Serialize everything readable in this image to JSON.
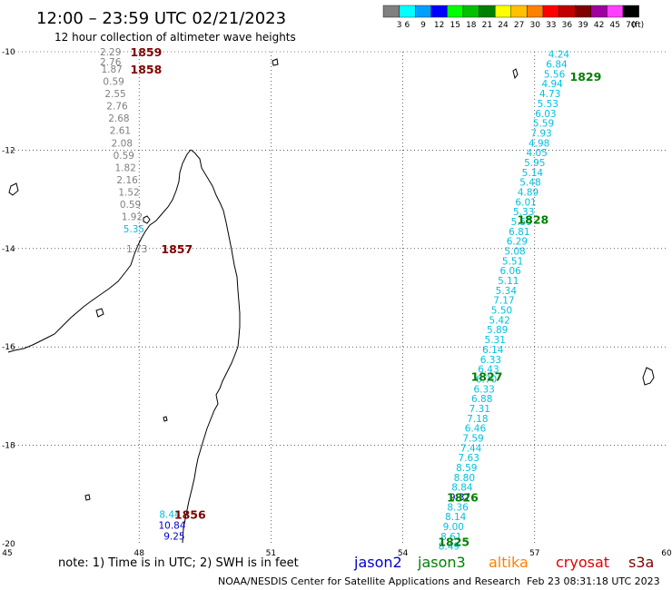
{
  "header": {
    "title": "12:00 – 23:59 UTC 02/21/2023",
    "subtitle": "12 hour collection of altimeter wave heights"
  },
  "legend": {
    "unit": "(ft)",
    "bins": [
      {
        "label": "3",
        "color": "#808080"
      },
      {
        "label": "6",
        "color": "#00ffff"
      },
      {
        "label": "9",
        "color": "#00a0ff"
      },
      {
        "label": "12",
        "color": "#0000ff"
      },
      {
        "label": "15",
        "color": "#00ff00"
      },
      {
        "label": "18",
        "color": "#00c000"
      },
      {
        "label": "21",
        "color": "#008000"
      },
      {
        "label": "24",
        "color": "#ffff00"
      },
      {
        "label": "27",
        "color": "#ffc000"
      },
      {
        "label": "30",
        "color": "#ff8000"
      },
      {
        "label": "33",
        "color": "#ff0000"
      },
      {
        "label": "36",
        "color": "#c00000"
      },
      {
        "label": "39",
        "color": "#800000"
      },
      {
        "label": "42",
        "color": "#a000a0"
      },
      {
        "label": "45",
        "color": "#ff40ff"
      },
      {
        "label": "70",
        "color": "#000000"
      }
    ]
  },
  "axes": {
    "lon_labels": [
      "45",
      "48",
      "51",
      "54",
      "57",
      "60"
    ],
    "lat_labels": [
      "-10",
      "-12",
      "-14",
      "-16",
      "-18",
      "-20"
    ]
  },
  "footer": {
    "note": "note: 1) Time is in UTC; 2) SWH is in feet",
    "satellites": [
      {
        "name": "jason2",
        "color": "#0000cc"
      },
      {
        "name": "jason3",
        "color": "#008000"
      },
      {
        "name": "altika",
        "color": "#ff8000"
      },
      {
        "name": "cryosat",
        "color": "#e00000"
      },
      {
        "name": "s3a",
        "color": "#800000"
      }
    ],
    "credit": "NOAA/NESDIS Center for Satellite Applications and Research",
    "timestamp": "Feb 23 08:31:18 UTC 2023"
  },
  "palette": {
    "gray": "#808080",
    "cyan": "#00c0e0",
    "blue": "#0000cc",
    "jason3_green": "#008000",
    "s3a_maroon": "#800000"
  },
  "tracks": [
    {
      "satellite": "s3a",
      "time_labels": [
        {
          "text": "1859",
          "lon": 47.8,
          "lat": -10.0
        },
        {
          "text": "1858",
          "lon": 47.8,
          "lat": -10.35
        },
        {
          "text": "1857",
          "lon": 48.5,
          "lat": -14.0
        },
        {
          "text": "1856",
          "lon": 48.8,
          "lat": -19.4
        }
      ],
      "swh": [
        {
          "v": "2.29",
          "lon": 47.35,
          "lat": -10.0,
          "c": "gray"
        },
        {
          "v": "2.76",
          "lon": 47.35,
          "lat": -10.2,
          "c": "gray"
        },
        {
          "v": "1.87",
          "lon": 47.38,
          "lat": -10.35,
          "c": "gray"
        },
        {
          "v": "0.59",
          "lon": 47.42,
          "lat": -10.6,
          "c": "gray"
        },
        {
          "v": "2.55",
          "lon": 47.46,
          "lat": -10.85,
          "c": "gray"
        },
        {
          "v": "2.76",
          "lon": 47.5,
          "lat": -11.1,
          "c": "gray"
        },
        {
          "v": "2.68",
          "lon": 47.54,
          "lat": -11.35,
          "c": "gray"
        },
        {
          "v": "2.61",
          "lon": 47.57,
          "lat": -11.6,
          "c": "gray"
        },
        {
          "v": "2.08",
          "lon": 47.61,
          "lat": -11.85,
          "c": "gray"
        },
        {
          "v": "0.59",
          "lon": 47.65,
          "lat": -12.1,
          "c": "gray"
        },
        {
          "v": "1.82",
          "lon": 47.69,
          "lat": -12.35,
          "c": "gray"
        },
        {
          "v": "2.16",
          "lon": 47.73,
          "lat": -12.6,
          "c": "gray"
        },
        {
          "v": "1.52",
          "lon": 47.77,
          "lat": -12.85,
          "c": "gray"
        },
        {
          "v": "0.59",
          "lon": 47.8,
          "lat": -13.1,
          "c": "gray"
        },
        {
          "v": "1.92",
          "lon": 47.84,
          "lat": -13.35,
          "c": "gray"
        },
        {
          "v": "5.35",
          "lon": 47.88,
          "lat": -13.6,
          "c": "cyan"
        },
        {
          "v": "1.73",
          "lon": 47.95,
          "lat": -14.0,
          "c": "gray"
        },
        {
          "v": "8.44",
          "lon": 48.7,
          "lat": -19.4,
          "c": "cyan"
        },
        {
          "v": "10.84",
          "lon": 48.75,
          "lat": -19.62,
          "c": "blue"
        },
        {
          "v": "9.25",
          "lon": 48.8,
          "lat": -19.84,
          "c": "blue"
        }
      ]
    },
    {
      "satellite": "jason3",
      "time_labels": [
        {
          "text": "1829",
          "lon": 57.8,
          "lat": -10.5
        },
        {
          "text": "1828",
          "lon": 56.6,
          "lat": -13.4
        },
        {
          "text": "1827",
          "lon": 55.55,
          "lat": -16.6
        },
        {
          "text": "1826",
          "lon": 55.0,
          "lat": -19.05
        },
        {
          "text": "1825",
          "lon": 54.8,
          "lat": -19.95
        }
      ],
      "swh": [
        {
          "v": "4.24",
          "lon": 57.55,
          "lat": -10.05,
          "c": "cyan"
        },
        {
          "v": "6.84",
          "lon": 57.5,
          "lat": -10.25,
          "c": "cyan"
        },
        {
          "v": "5.56",
          "lon": 57.45,
          "lat": -10.45,
          "c": "cyan"
        },
        {
          "v": "4.94",
          "lon": 57.4,
          "lat": -10.65,
          "c": "cyan"
        },
        {
          "v": "4.73",
          "lon": 57.35,
          "lat": -10.85,
          "c": "cyan"
        },
        {
          "v": "5.53",
          "lon": 57.3,
          "lat": -11.05,
          "c": "cyan"
        },
        {
          "v": "6.03",
          "lon": 57.25,
          "lat": -11.25,
          "c": "cyan"
        },
        {
          "v": "5.59",
          "lon": 57.2,
          "lat": -11.45,
          "c": "cyan"
        },
        {
          "v": "7.93",
          "lon": 57.15,
          "lat": -11.65,
          "c": "cyan"
        },
        {
          "v": "4.98",
          "lon": 57.1,
          "lat": -11.85,
          "c": "cyan"
        },
        {
          "v": "4.05",
          "lon": 57.05,
          "lat": -12.05,
          "c": "cyan"
        },
        {
          "v": "5.95",
          "lon": 57.0,
          "lat": -12.25,
          "c": "cyan"
        },
        {
          "v": "5.14",
          "lon": 56.95,
          "lat": -12.45,
          "c": "cyan"
        },
        {
          "v": "5.48",
          "lon": 56.9,
          "lat": -12.65,
          "c": "cyan"
        },
        {
          "v": "4.89",
          "lon": 56.85,
          "lat": -12.85,
          "c": "cyan"
        },
        {
          "v": "6.01",
          "lon": 56.8,
          "lat": -13.05,
          "c": "cyan"
        },
        {
          "v": "5.33",
          "lon": 56.75,
          "lat": -13.25,
          "c": "cyan"
        },
        {
          "v": "5.59",
          "lon": 56.7,
          "lat": -13.45,
          "c": "cyan"
        },
        {
          "v": "6.81",
          "lon": 56.65,
          "lat": -13.65,
          "c": "cyan"
        },
        {
          "v": "6.29",
          "lon": 56.6,
          "lat": -13.85,
          "c": "cyan"
        },
        {
          "v": "5.08",
          "lon": 56.55,
          "lat": -14.05,
          "c": "cyan"
        },
        {
          "v": "5.51",
          "lon": 56.5,
          "lat": -14.25,
          "c": "cyan"
        },
        {
          "v": "6.06",
          "lon": 56.45,
          "lat": -14.45,
          "c": "cyan"
        },
        {
          "v": "5.11",
          "lon": 56.4,
          "lat": -14.65,
          "c": "cyan"
        },
        {
          "v": "5.34",
          "lon": 56.35,
          "lat": -14.85,
          "c": "cyan"
        },
        {
          "v": "7.17",
          "lon": 56.3,
          "lat": -15.05,
          "c": "cyan"
        },
        {
          "v": "5.50",
          "lon": 56.25,
          "lat": -15.25,
          "c": "cyan"
        },
        {
          "v": "5.42",
          "lon": 56.2,
          "lat": -15.45,
          "c": "cyan"
        },
        {
          "v": "5.89",
          "lon": 56.15,
          "lat": -15.65,
          "c": "cyan"
        },
        {
          "v": "5.31",
          "lon": 56.1,
          "lat": -15.85,
          "c": "cyan"
        },
        {
          "v": "6.14",
          "lon": 56.05,
          "lat": -16.05,
          "c": "cyan"
        },
        {
          "v": "6.33",
          "lon": 56.0,
          "lat": -16.25,
          "c": "cyan"
        },
        {
          "v": "6.43",
          "lon": 55.95,
          "lat": -16.45,
          "c": "cyan"
        },
        {
          "v": "6.70",
          "lon": 55.9,
          "lat": -16.65,
          "c": "cyan"
        },
        {
          "v": "6.33",
          "lon": 55.85,
          "lat": -16.85,
          "c": "cyan"
        },
        {
          "v": "6.88",
          "lon": 55.8,
          "lat": -17.05,
          "c": "cyan"
        },
        {
          "v": "7.31",
          "lon": 55.75,
          "lat": -17.25,
          "c": "cyan"
        },
        {
          "v": "7.18",
          "lon": 55.7,
          "lat": -17.45,
          "c": "cyan"
        },
        {
          "v": "6.46",
          "lon": 55.65,
          "lat": -17.65,
          "c": "cyan"
        },
        {
          "v": "7.59",
          "lon": 55.6,
          "lat": -17.85,
          "c": "cyan"
        },
        {
          "v": "7.44",
          "lon": 55.55,
          "lat": -18.05,
          "c": "cyan"
        },
        {
          "v": "7.63",
          "lon": 55.5,
          "lat": -18.25,
          "c": "cyan"
        },
        {
          "v": "8.59",
          "lon": 55.45,
          "lat": -18.45,
          "c": "cyan"
        },
        {
          "v": "8.80",
          "lon": 55.4,
          "lat": -18.65,
          "c": "cyan"
        },
        {
          "v": "8.84",
          "lon": 55.35,
          "lat": -18.85,
          "c": "cyan"
        },
        {
          "v": "9.37",
          "lon": 55.3,
          "lat": -19.05,
          "c": "blue"
        },
        {
          "v": "8.36",
          "lon": 55.25,
          "lat": -19.25,
          "c": "cyan"
        },
        {
          "v": "8.14",
          "lon": 55.2,
          "lat": -19.45,
          "c": "cyan"
        },
        {
          "v": "9.00",
          "lon": 55.15,
          "lat": -19.65,
          "c": "cyan"
        },
        {
          "v": "8.61",
          "lon": 55.1,
          "lat": -19.85,
          "c": "cyan"
        },
        {
          "v": "8.49",
          "lon": 55.05,
          "lat": -20.05,
          "c": "cyan"
        }
      ]
    }
  ]
}
